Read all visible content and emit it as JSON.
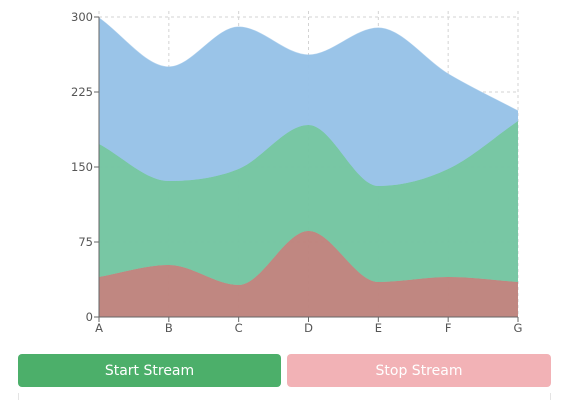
{
  "chart_data": {
    "type": "area",
    "stacked": true,
    "categories": [
      "A",
      "B",
      "C",
      "D",
      "E",
      "F",
      "G"
    ],
    "series": [
      {
        "values": [
          40,
          52,
          32,
          86,
          35,
          40,
          35
        ],
        "color": "#bf857e"
      },
      {
        "values": [
          133,
          84,
          116,
          106,
          96,
          108,
          161
        ],
        "color": "#75c6a2"
      },
      {
        "values": [
          126,
          114,
          142,
          70,
          158,
          95,
          10
        ],
        "color": "#98c3e8"
      }
    ],
    "y_ticks": [
      0,
      75,
      150,
      225,
      300
    ],
    "ylim": [
      0,
      300
    ],
    "grid": true,
    "title": "",
    "xlabel": "",
    "ylabel": ""
  },
  "controls": {
    "start_label": "Start Stream",
    "stop_label": "Stop Stream"
  }
}
